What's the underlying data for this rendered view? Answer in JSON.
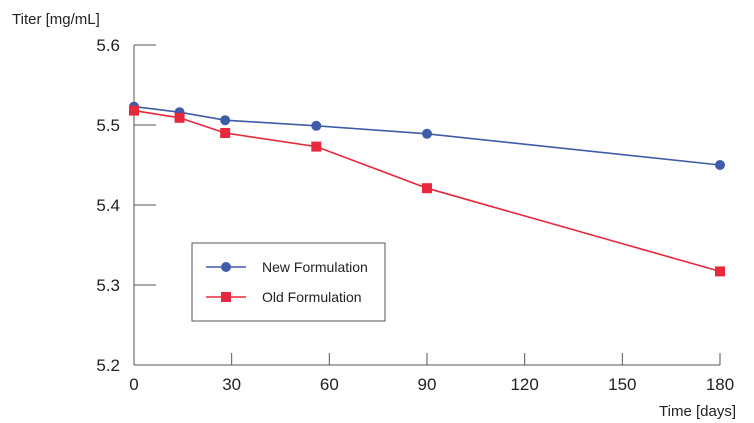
{
  "chart_data": {
    "type": "line",
    "ylabel": "Titer [mg/mL]",
    "xlabel": "Time [days]",
    "xlim": [
      0,
      180
    ],
    "ylim": [
      5.2,
      5.6
    ],
    "x_ticks": [
      "0",
      "30",
      "60",
      "90",
      "120",
      "150",
      "180"
    ],
    "y_ticks": [
      "5.2",
      "5.3",
      "5.4",
      "5.5",
      "5.6"
    ],
    "grid": false,
    "legend_position": "lower-left",
    "series": [
      {
        "name": "New Formulation",
        "color": "#3f5ca8",
        "marker": "circle",
        "x": [
          0,
          14,
          28,
          56,
          90,
          180
        ],
        "y": [
          5.523,
          5.516,
          5.506,
          5.499,
          5.489,
          5.45
        ]
      },
      {
        "name": "Old Formulation",
        "color": "#e8283c",
        "marker": "square",
        "x": [
          0,
          14,
          28,
          56,
          90,
          180
        ],
        "y": [
          5.518,
          5.509,
          5.49,
          5.473,
          5.421,
          5.317
        ]
      }
    ]
  }
}
